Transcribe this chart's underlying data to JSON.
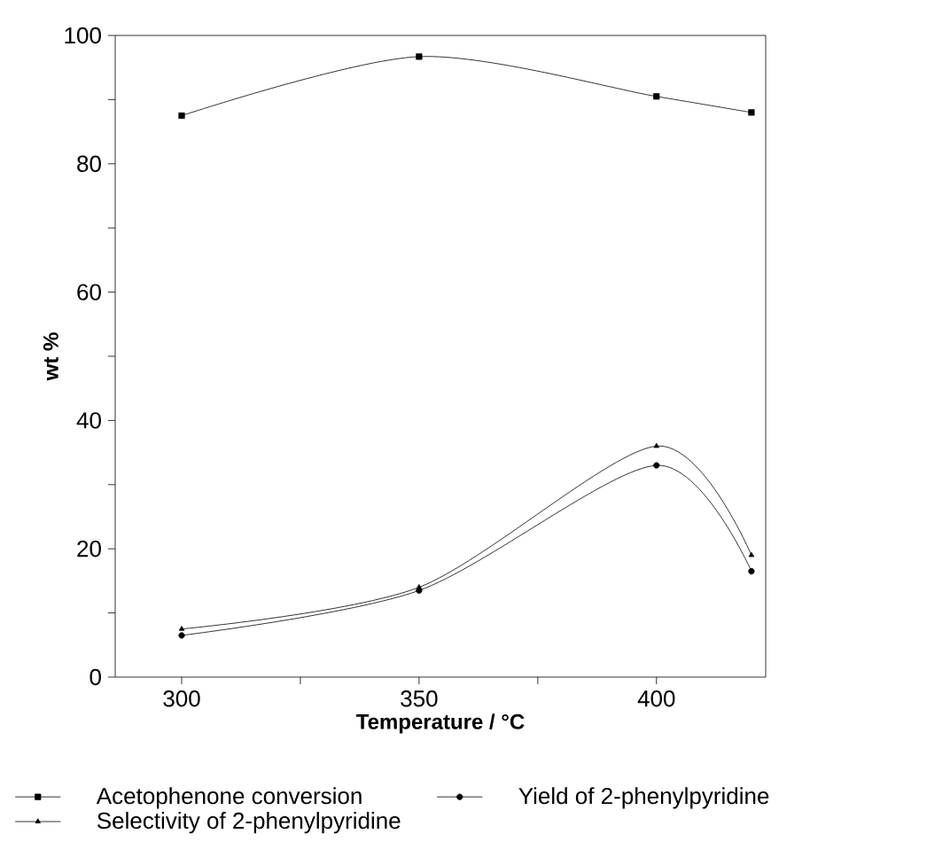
{
  "chart_data": {
    "type": "line",
    "xlabel": "Temperature / °C",
    "ylabel": "wt %",
    "x": [
      300,
      350,
      400,
      420
    ],
    "series": [
      {
        "name": "Acetophenone conversion",
        "color": "#000000",
        "marker": "square",
        "values": [
          87.5,
          96.7,
          90.5,
          88
        ]
      },
      {
        "name": "Yield of 2-phenylpyridine",
        "color": "#000000",
        "marker": "circle",
        "values": [
          6.5,
          13.5,
          33,
          16.5
        ]
      },
      {
        "name": "Selectivity of 2-phenylpyridine",
        "color": "#000000",
        "marker": "triangle",
        "values": [
          7.5,
          14,
          36,
          19
        ]
      }
    ],
    "xlim": [
      286,
      423
    ],
    "ylim": [
      0,
      100
    ],
    "xticks": [
      300,
      {
        "value": 325,
        "label": null
      },
      350,
      {
        "value": 375,
        "label": null
      },
      400
    ],
    "yticks": [
      0,
      {
        "value": 10,
        "label": null
      },
      20,
      {
        "value": 30,
        "label": null
      },
      40,
      {
        "value": 50,
        "label": null
      },
      60,
      {
        "value": 70,
        "label": null
      },
      80,
      {
        "value": 90,
        "label": null
      },
      100
    ],
    "grid": false,
    "legend": "bottom",
    "line_style": "solid"
  }
}
